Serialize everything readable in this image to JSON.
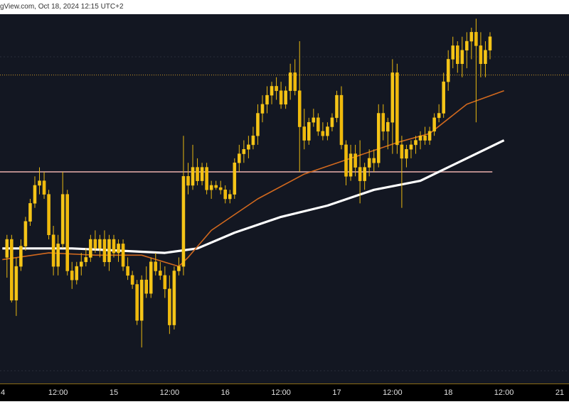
{
  "header": {
    "text": "gView.com, Oct 18, 2024 12:15 UTC+2"
  },
  "colors": {
    "background": "#131722",
    "candle": "#f5c518",
    "wick": "#e8b810",
    "ma_fast": "#d2691e",
    "ma_slow": "#ffffff",
    "level_line": "#b58a8a",
    "dotted_line": "#c8962a"
  },
  "chart_data": {
    "type": "candlestick",
    "x_ticks": [
      "4",
      "12:00",
      "15",
      "12:00",
      "16",
      "12:00",
      "17",
      "12:00",
      "18",
      "12:00",
      "21"
    ],
    "x_tick_positions": [
      0,
      12,
      24,
      36,
      48,
      60,
      72,
      84,
      96,
      108,
      120
    ],
    "horizontal_levels": [
      {
        "style": "solid",
        "value": 50
      },
      {
        "style": "dotted",
        "value": 93
      }
    ],
    "ma_fast": [
      [
        0,
        11
      ],
      [
        10,
        14
      ],
      [
        20,
        13
      ],
      [
        30,
        13
      ],
      [
        38,
        8
      ],
      [
        40,
        12
      ],
      [
        45,
        24
      ],
      [
        55,
        38
      ],
      [
        65,
        49
      ],
      [
        75,
        56
      ],
      [
        85,
        63
      ],
      [
        92,
        67
      ],
      [
        100,
        80
      ],
      [
        108,
        86
      ]
    ],
    "ma_slow": [
      [
        0,
        16
      ],
      [
        15,
        16
      ],
      [
        25,
        15
      ],
      [
        35,
        14
      ],
      [
        42,
        16
      ],
      [
        50,
        23
      ],
      [
        60,
        30
      ],
      [
        70,
        35
      ],
      [
        80,
        42
      ],
      [
        90,
        46
      ],
      [
        100,
        56
      ],
      [
        108,
        64
      ]
    ],
    "candles": [
      {
        "x": 1,
        "o": 12,
        "h": 22,
        "l": 3,
        "c": 20
      },
      {
        "x": 2,
        "o": 20,
        "h": 22,
        "l": -8,
        "c": -7
      },
      {
        "x": 3,
        "o": -7,
        "h": 12,
        "l": -14,
        "c": 8
      },
      {
        "x": 4,
        "o": 8,
        "h": 20,
        "l": 6,
        "c": 17
      },
      {
        "x": 5,
        "o": 17,
        "h": 30,
        "l": 15,
        "c": 28
      },
      {
        "x": 6,
        "o": 28,
        "h": 38,
        "l": 26,
        "c": 36
      },
      {
        "x": 7,
        "o": 36,
        "h": 48,
        "l": 34,
        "c": 44
      },
      {
        "x": 8,
        "o": 44,
        "h": 52,
        "l": 40,
        "c": 46
      },
      {
        "x": 9,
        "o": 46,
        "h": 50,
        "l": 38,
        "c": 40
      },
      {
        "x": 10,
        "o": 40,
        "h": 42,
        "l": 20,
        "c": 22
      },
      {
        "x": 11,
        "o": 22,
        "h": 26,
        "l": 4,
        "c": 8
      },
      {
        "x": 12,
        "o": 8,
        "h": 22,
        "l": 4,
        "c": 18
      },
      {
        "x": 13,
        "o": 18,
        "h": 50,
        "l": 16,
        "c": 40
      },
      {
        "x": 14,
        "o": 40,
        "h": 42,
        "l": 4,
        "c": 6
      },
      {
        "x": 15,
        "o": 6,
        "h": 10,
        "l": -2,
        "c": 2
      },
      {
        "x": 16,
        "o": 2,
        "h": 10,
        "l": 0,
        "c": 8
      },
      {
        "x": 17,
        "o": 8,
        "h": 14,
        "l": 4,
        "c": 10
      },
      {
        "x": 18,
        "o": 10,
        "h": 16,
        "l": 8,
        "c": 12
      },
      {
        "x": 19,
        "o": 12,
        "h": 22,
        "l": 10,
        "c": 20
      },
      {
        "x": 20,
        "o": 20,
        "h": 24,
        "l": 14,
        "c": 16
      },
      {
        "x": 21,
        "o": 16,
        "h": 22,
        "l": 12,
        "c": 20
      },
      {
        "x": 22,
        "o": 20,
        "h": 24,
        "l": 8,
        "c": 10
      },
      {
        "x": 23,
        "o": 10,
        "h": 22,
        "l": 6,
        "c": 20
      },
      {
        "x": 24,
        "o": 20,
        "h": 22,
        "l": 12,
        "c": 14
      },
      {
        "x": 25,
        "o": 14,
        "h": 20,
        "l": 10,
        "c": 18
      },
      {
        "x": 26,
        "o": 18,
        "h": 20,
        "l": 6,
        "c": 8
      },
      {
        "x": 27,
        "o": 8,
        "h": 12,
        "l": 2,
        "c": 4
      },
      {
        "x": 28,
        "o": 4,
        "h": 6,
        "l": -2,
        "c": 0
      },
      {
        "x": 29,
        "o": 0,
        "h": 2,
        "l": -18,
        "c": -16
      },
      {
        "x": 30,
        "o": -16,
        "h": 4,
        "l": -28,
        "c": 2
      },
      {
        "x": 31,
        "o": 2,
        "h": 8,
        "l": -6,
        "c": -4
      },
      {
        "x": 32,
        "o": -4,
        "h": 12,
        "l": -6,
        "c": 10
      },
      {
        "x": 33,
        "o": 10,
        "h": 14,
        "l": 4,
        "c": 6
      },
      {
        "x": 34,
        "o": 6,
        "h": 10,
        "l": 2,
        "c": 4
      },
      {
        "x": 35,
        "o": 4,
        "h": 8,
        "l": -6,
        "c": -2
      },
      {
        "x": 36,
        "o": -2,
        "h": 4,
        "l": -22,
        "c": -18
      },
      {
        "x": 37,
        "o": -18,
        "h": 8,
        "l": -20,
        "c": 6
      },
      {
        "x": 38,
        "o": 6,
        "h": 12,
        "l": 4,
        "c": 8
      },
      {
        "x": 39,
        "o": 8,
        "h": 66,
        "l": 4,
        "c": 48
      },
      {
        "x": 40,
        "o": 48,
        "h": 54,
        "l": 40,
        "c": 44
      },
      {
        "x": 41,
        "o": 44,
        "h": 62,
        "l": 42,
        "c": 52
      },
      {
        "x": 42,
        "o": 52,
        "h": 56,
        "l": 44,
        "c": 46
      },
      {
        "x": 43,
        "o": 46,
        "h": 54,
        "l": 44,
        "c": 52
      },
      {
        "x": 44,
        "o": 52,
        "h": 54,
        "l": 40,
        "c": 42
      },
      {
        "x": 45,
        "o": 42,
        "h": 46,
        "l": 38,
        "c": 44
      },
      {
        "x": 46,
        "o": 44,
        "h": 46,
        "l": 42,
        "c": 43
      },
      {
        "x": 47,
        "o": 43,
        "h": 46,
        "l": 40,
        "c": 42
      },
      {
        "x": 48,
        "o": 42,
        "h": 44,
        "l": 36,
        "c": 38
      },
      {
        "x": 49,
        "o": 38,
        "h": 42,
        "l": 36,
        "c": 40
      },
      {
        "x": 50,
        "o": 40,
        "h": 56,
        "l": 38,
        "c": 54
      },
      {
        "x": 51,
        "o": 54,
        "h": 62,
        "l": 50,
        "c": 58
      },
      {
        "x": 52,
        "o": 58,
        "h": 64,
        "l": 54,
        "c": 60
      },
      {
        "x": 53,
        "o": 60,
        "h": 66,
        "l": 56,
        "c": 62
      },
      {
        "x": 54,
        "o": 62,
        "h": 70,
        "l": 60,
        "c": 66
      },
      {
        "x": 55,
        "o": 66,
        "h": 80,
        "l": 62,
        "c": 76
      },
      {
        "x": 56,
        "o": 76,
        "h": 84,
        "l": 72,
        "c": 80
      },
      {
        "x": 57,
        "o": 80,
        "h": 88,
        "l": 76,
        "c": 84
      },
      {
        "x": 58,
        "o": 84,
        "h": 90,
        "l": 80,
        "c": 88
      },
      {
        "x": 59,
        "o": 88,
        "h": 92,
        "l": 82,
        "c": 86
      },
      {
        "x": 60,
        "o": 86,
        "h": 90,
        "l": 78,
        "c": 80
      },
      {
        "x": 61,
        "o": 80,
        "h": 88,
        "l": 78,
        "c": 86
      },
      {
        "x": 62,
        "o": 86,
        "h": 98,
        "l": 82,
        "c": 94
      },
      {
        "x": 63,
        "o": 94,
        "h": 100,
        "l": 84,
        "c": 86
      },
      {
        "x": 64,
        "o": 86,
        "h": 108,
        "l": 50,
        "c": 70
      },
      {
        "x": 65,
        "o": 70,
        "h": 78,
        "l": 60,
        "c": 64
      },
      {
        "x": 66,
        "o": 64,
        "h": 74,
        "l": 62,
        "c": 72
      },
      {
        "x": 67,
        "o": 72,
        "h": 78,
        "l": 70,
        "c": 74
      },
      {
        "x": 68,
        "o": 74,
        "h": 76,
        "l": 66,
        "c": 68
      },
      {
        "x": 69,
        "o": 68,
        "h": 72,
        "l": 64,
        "c": 66
      },
      {
        "x": 70,
        "o": 66,
        "h": 72,
        "l": 64,
        "c": 70
      },
      {
        "x": 71,
        "o": 70,
        "h": 76,
        "l": 68,
        "c": 74
      },
      {
        "x": 72,
        "o": 74,
        "h": 86,
        "l": 72,
        "c": 84
      },
      {
        "x": 73,
        "o": 84,
        "h": 88,
        "l": 60,
        "c": 62
      },
      {
        "x": 74,
        "o": 62,
        "h": 64,
        "l": 44,
        "c": 48
      },
      {
        "x": 75,
        "o": 48,
        "h": 62,
        "l": 46,
        "c": 58
      },
      {
        "x": 76,
        "o": 58,
        "h": 62,
        "l": 48,
        "c": 52
      },
      {
        "x": 77,
        "o": 52,
        "h": 64,
        "l": 36,
        "c": 46
      },
      {
        "x": 78,
        "o": 46,
        "h": 54,
        "l": 42,
        "c": 52
      },
      {
        "x": 79,
        "o": 52,
        "h": 60,
        "l": 48,
        "c": 56
      },
      {
        "x": 80,
        "o": 56,
        "h": 60,
        "l": 50,
        "c": 54
      },
      {
        "x": 81,
        "o": 54,
        "h": 80,
        "l": 52,
        "c": 76
      },
      {
        "x": 82,
        "o": 76,
        "h": 80,
        "l": 64,
        "c": 68
      },
      {
        "x": 83,
        "o": 68,
        "h": 74,
        "l": 60,
        "c": 72
      },
      {
        "x": 84,
        "o": 72,
        "h": 100,
        "l": 58,
        "c": 94
      },
      {
        "x": 85,
        "o": 94,
        "h": 98,
        "l": 58,
        "c": 62
      },
      {
        "x": 86,
        "o": 62,
        "h": 66,
        "l": 34,
        "c": 56
      },
      {
        "x": 87,
        "o": 56,
        "h": 62,
        "l": 52,
        "c": 60
      },
      {
        "x": 88,
        "o": 60,
        "h": 64,
        "l": 56,
        "c": 62
      },
      {
        "x": 89,
        "o": 62,
        "h": 66,
        "l": 58,
        "c": 64
      },
      {
        "x": 90,
        "o": 64,
        "h": 68,
        "l": 60,
        "c": 66
      },
      {
        "x": 91,
        "o": 66,
        "h": 70,
        "l": 62,
        "c": 64
      },
      {
        "x": 92,
        "o": 64,
        "h": 70,
        "l": 62,
        "c": 68
      },
      {
        "x": 93,
        "o": 68,
        "h": 76,
        "l": 66,
        "c": 74
      },
      {
        "x": 94,
        "o": 74,
        "h": 80,
        "l": 72,
        "c": 76
      },
      {
        "x": 95,
        "o": 76,
        "h": 94,
        "l": 74,
        "c": 90
      },
      {
        "x": 96,
        "o": 90,
        "h": 104,
        "l": 86,
        "c": 100
      },
      {
        "x": 97,
        "o": 100,
        "h": 110,
        "l": 96,
        "c": 106
      },
      {
        "x": 98,
        "o": 106,
        "h": 108,
        "l": 94,
        "c": 98
      },
      {
        "x": 99,
        "o": 98,
        "h": 110,
        "l": 92,
        "c": 104
      },
      {
        "x": 100,
        "o": 104,
        "h": 112,
        "l": 96,
        "c": 108
      },
      {
        "x": 101,
        "o": 108,
        "h": 114,
        "l": 100,
        "c": 112
      },
      {
        "x": 102,
        "o": 112,
        "h": 118,
        "l": 72,
        "c": 106
      },
      {
        "x": 103,
        "o": 106,
        "h": 112,
        "l": 92,
        "c": 98
      },
      {
        "x": 104,
        "o": 98,
        "h": 108,
        "l": 92,
        "c": 104
      },
      {
        "x": 105,
        "o": 104,
        "h": 112,
        "l": 100,
        "c": 110
      }
    ],
    "x_range": [
      -0.5,
      122
    ],
    "y_range": [
      -44,
      120
    ]
  }
}
